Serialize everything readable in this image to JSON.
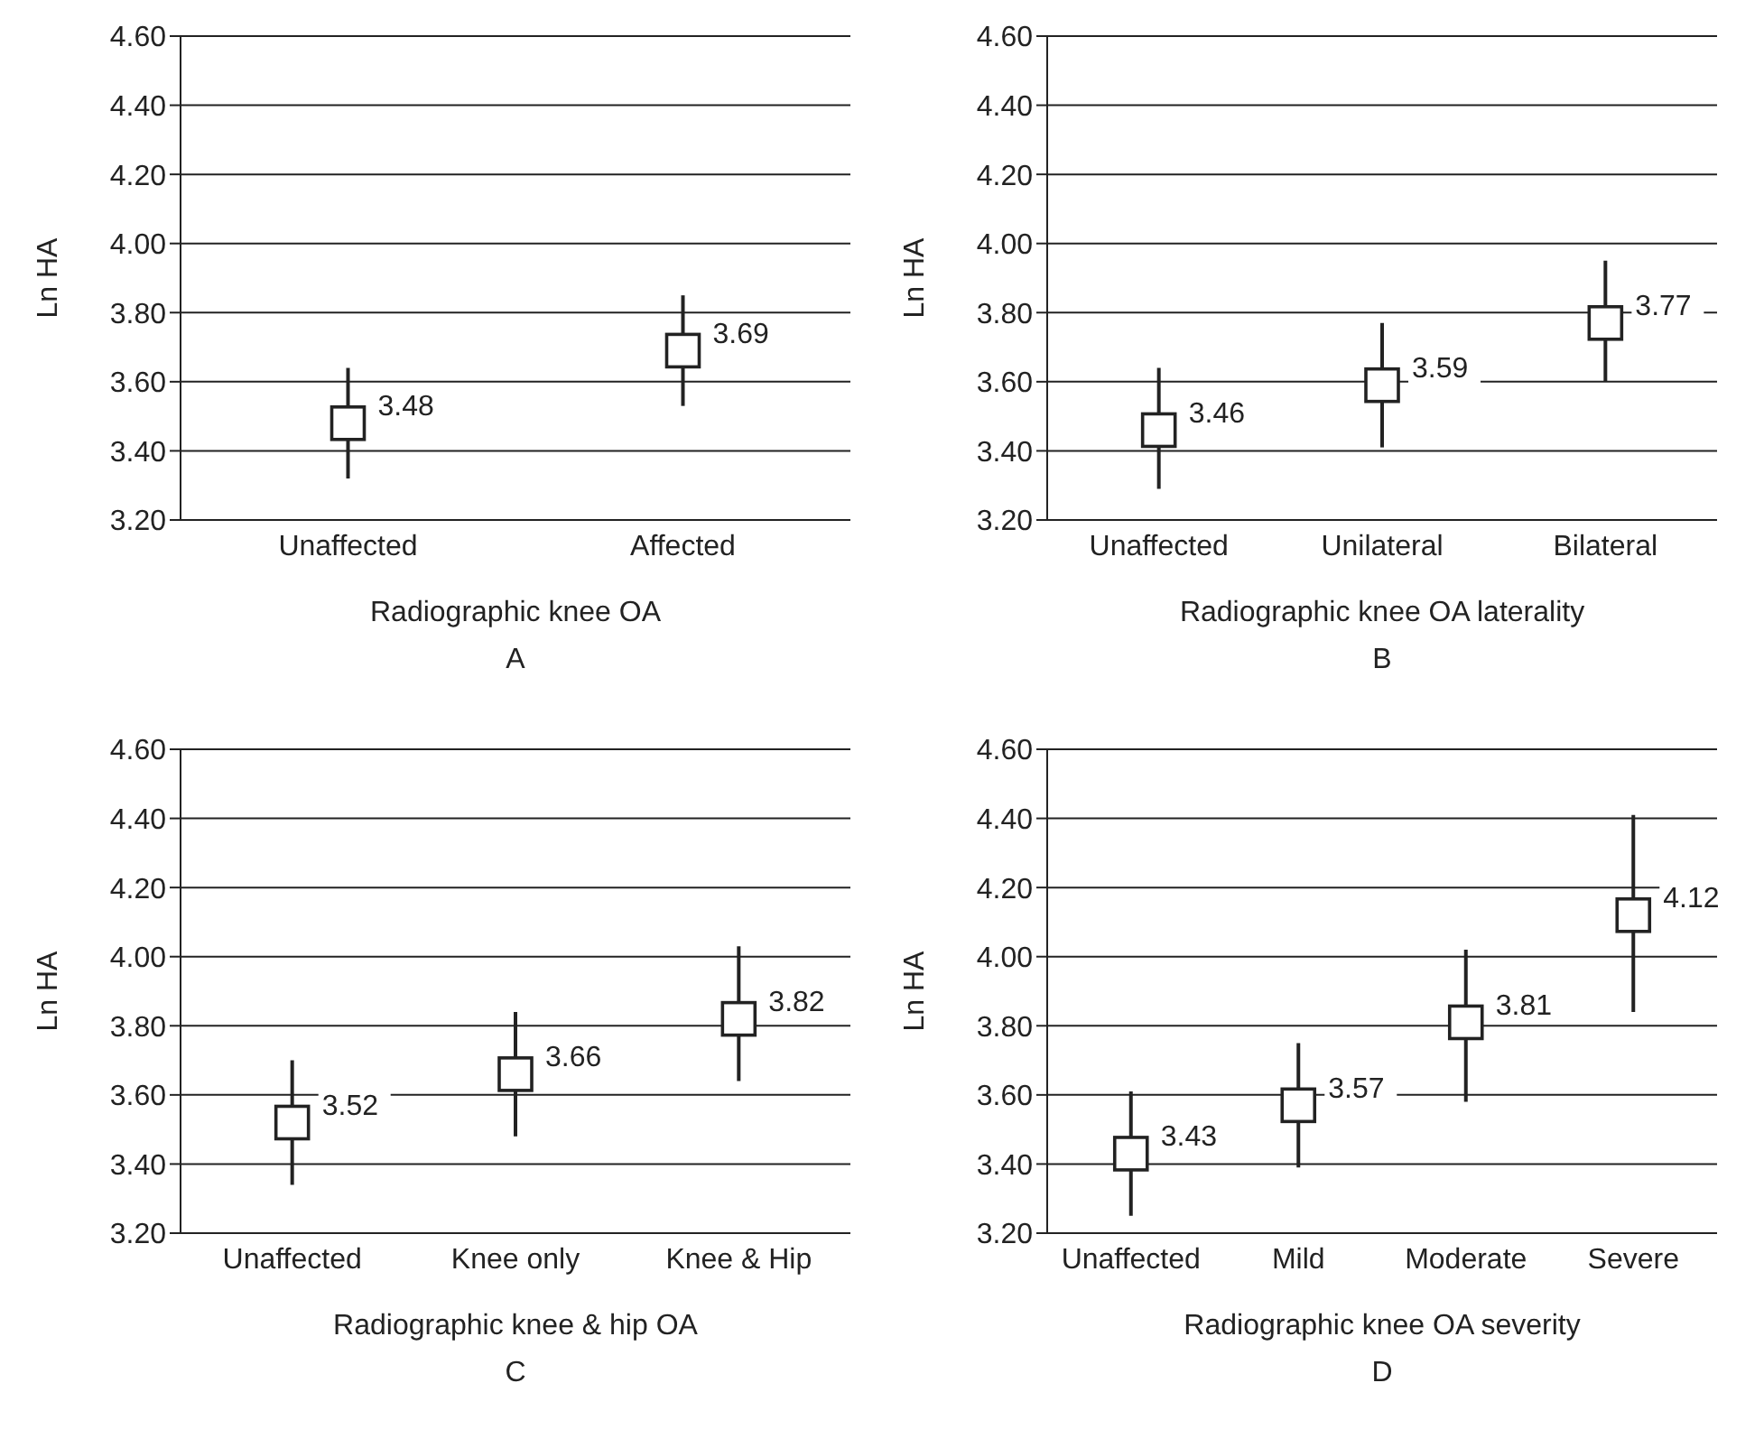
{
  "chart_data": [
    {
      "type": "scatter",
      "categories": [
        "Unaffected",
        "Affected"
      ],
      "xlabel": "Radiographic knee OA",
      "ylabel": "Ln HA",
      "annotations": [
        "A"
      ],
      "values": [
        3.48,
        3.69
      ],
      "errors": [
        [
          3.32,
          3.64
        ],
        [
          3.53,
          3.85
        ]
      ],
      "color": "#222222",
      "marker": "square",
      "data_labels": true,
      "ylim": [
        3.2,
        4.6
      ],
      "yticks": [
        {
          "value": 3.2,
          "label": "3.20"
        },
        {
          "value": 3.4,
          "label": "3.40"
        },
        {
          "value": 3.6,
          "label": "3.60"
        },
        {
          "value": 3.8,
          "label": "3.80"
        },
        {
          "value": 4.0,
          "label": "4.00"
        },
        {
          "value": 4.2,
          "label": "4.20"
        },
        {
          "value": 4.4,
          "label": "4.40"
        },
        {
          "value": 4.6,
          "label": "4.60"
        }
      ],
      "grid": "y"
    },
    {
      "type": "scatter",
      "categories": [
        "Unaffected",
        "Unilateral",
        "Bilateral"
      ],
      "xlabel": "Radiographic knee OA laterality",
      "ylabel": "Ln HA",
      "annotations": [
        "B"
      ],
      "values": [
        3.46,
        3.59,
        3.77
      ],
      "errors": [
        [
          3.29,
          3.64
        ],
        [
          3.41,
          3.77
        ],
        [
          3.6,
          3.95
        ]
      ],
      "color": "#222222",
      "marker": "square",
      "data_labels": true,
      "ylim": [
        3.2,
        4.6
      ],
      "yticks": [
        {
          "value": 3.2,
          "label": "3.20"
        },
        {
          "value": 3.4,
          "label": "3.40"
        },
        {
          "value": 3.6,
          "label": "3.60"
        },
        {
          "value": 3.8,
          "label": "3.80"
        },
        {
          "value": 4.0,
          "label": "4.00"
        },
        {
          "value": 4.2,
          "label": "4.20"
        },
        {
          "value": 4.4,
          "label": "4.40"
        },
        {
          "value": 4.6,
          "label": "4.60"
        }
      ],
      "grid": "y"
    },
    {
      "type": "scatter",
      "categories": [
        "Unaffected",
        "Knee only",
        "Knee & Hip"
      ],
      "xlabel": "Radiographic knee  & hip OA",
      "ylabel": "Ln HA",
      "annotations": [
        "C"
      ],
      "values": [
        3.52,
        3.66,
        3.82
      ],
      "errors": [
        [
          3.34,
          3.7
        ],
        [
          3.48,
          3.84
        ],
        [
          3.64,
          4.03
        ]
      ],
      "color": "#222222",
      "marker": "square",
      "data_labels": true,
      "ylim": [
        3.2,
        4.6
      ],
      "yticks": [
        {
          "value": 3.2,
          "label": "3.20"
        },
        {
          "value": 3.4,
          "label": "3.40"
        },
        {
          "value": 3.6,
          "label": "3.60"
        },
        {
          "value": 3.8,
          "label": "3.80"
        },
        {
          "value": 4.0,
          "label": "4.00"
        },
        {
          "value": 4.2,
          "label": "4.20"
        },
        {
          "value": 4.4,
          "label": "4.40"
        },
        {
          "value": 4.6,
          "label": "4.60"
        }
      ],
      "grid": "y"
    },
    {
      "type": "scatter",
      "categories": [
        "Unaffected",
        "Mild",
        "Moderate",
        "Severe"
      ],
      "xlabel": "Radiographic knee OA severity",
      "ylabel": "Ln HA",
      "annotations": [
        "D"
      ],
      "values": [
        3.43,
        3.57,
        3.81,
        4.12
      ],
      "errors": [
        [
          3.25,
          3.61
        ],
        [
          3.39,
          3.75
        ],
        [
          3.58,
          4.02
        ],
        [
          3.84,
          4.41
        ]
      ],
      "color": "#222222",
      "marker": "square",
      "data_labels": true,
      "ylim": [
        3.2,
        4.6
      ],
      "yticks": [
        {
          "value": 3.2,
          "label": "3.20"
        },
        {
          "value": 3.4,
          "label": "3.40"
        },
        {
          "value": 3.6,
          "label": "3.60"
        },
        {
          "value": 3.8,
          "label": "3.80"
        },
        {
          "value": 4.0,
          "label": "4.00"
        },
        {
          "value": 4.2,
          "label": "4.20"
        },
        {
          "value": 4.4,
          "label": "4.40"
        },
        {
          "value": 4.6,
          "label": "4.60"
        }
      ],
      "grid": "y"
    }
  ]
}
